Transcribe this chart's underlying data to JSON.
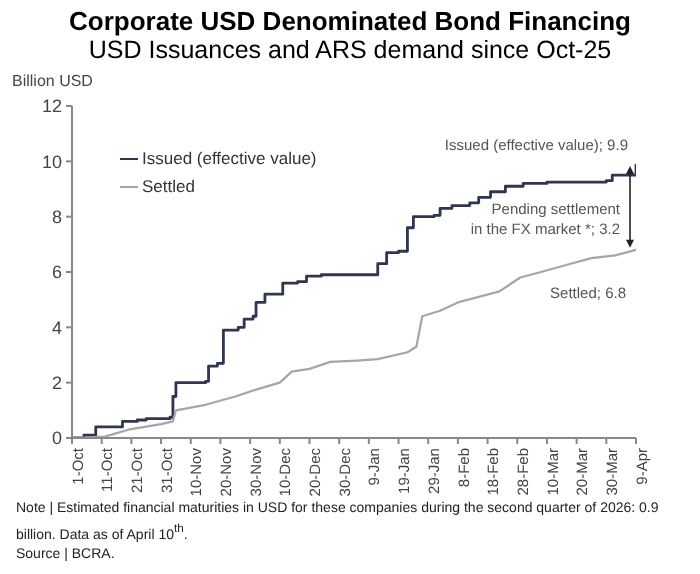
{
  "chart_data": {
    "type": "line",
    "title": "Corporate USD Denominated Bond Financing",
    "subtitle": "USD Issuances and ARS demand since Oct-25",
    "ylabel": "Billion USD",
    "series": [
      {
        "name": "Issued (effective value)",
        "type": "step",
        "color": "#2f3650",
        "x": [
          "2025-10-01",
          "2025-10-05",
          "2025-10-09",
          "2025-10-16",
          "2025-10-18",
          "2025-10-23",
          "2025-10-26",
          "2025-11-03",
          "2025-11-04",
          "2025-11-05",
          "2025-11-15",
          "2025-11-16",
          "2025-11-19",
          "2025-11-21",
          "2025-11-26",
          "2025-11-28",
          "2025-12-01",
          "2025-12-02",
          "2025-12-05",
          "2025-12-11",
          "2025-12-16",
          "2025-12-19",
          "2025-12-24",
          "2026-01-09",
          "2026-01-12",
          "2026-01-15",
          "2026-01-19",
          "2026-01-22",
          "2026-01-24",
          "2026-01-31",
          "2026-02-02",
          "2026-02-06",
          "2026-02-12",
          "2026-02-15",
          "2026-02-19",
          "2026-02-24",
          "2026-03-02",
          "2026-03-10",
          "2026-03-30",
          "2026-04-01",
          "2026-04-08",
          "2026-04-09"
        ],
        "values": [
          0,
          0.1,
          0.4,
          0.4,
          0.6,
          0.65,
          0.7,
          0.75,
          1.5,
          2.0,
          2.05,
          2.6,
          2.7,
          3.9,
          4.0,
          4.3,
          4.4,
          4.9,
          5.2,
          5.6,
          5.65,
          5.85,
          5.9,
          5.9,
          6.3,
          6.7,
          6.75,
          7.6,
          8.0,
          8.05,
          8.3,
          8.4,
          8.5,
          8.7,
          8.9,
          9.1,
          9.2,
          9.25,
          9.3,
          9.5,
          9.5,
          9.9
        ]
      },
      {
        "name": "Settled",
        "color": "#a6a6a6",
        "x": [
          "2025-10-01",
          "2025-10-12",
          "2025-10-20",
          "2025-10-31",
          "2025-11-04",
          "2025-11-05",
          "2025-11-15",
          "2025-11-25",
          "2025-12-02",
          "2025-12-10",
          "2025-12-14",
          "2025-12-20",
          "2025-12-27",
          "2026-01-05",
          "2026-01-12",
          "2026-01-22",
          "2026-01-25",
          "2026-01-27",
          "2026-02-02",
          "2026-02-08",
          "2026-02-15",
          "2026-02-22",
          "2026-03-01",
          "2026-03-08",
          "2026-03-18",
          "2026-03-25",
          "2026-04-02",
          "2026-04-09"
        ],
        "values": [
          0,
          0.05,
          0.3,
          0.5,
          0.6,
          1.0,
          1.2,
          1.5,
          1.75,
          2.0,
          2.4,
          2.5,
          2.75,
          2.8,
          2.85,
          3.1,
          3.3,
          4.4,
          4.6,
          4.9,
          5.1,
          5.3,
          5.8,
          6.0,
          6.3,
          6.5,
          6.6,
          6.8
        ]
      }
    ],
    "xlim": [
      "2025-10-01",
      "2026-04-09"
    ],
    "xticks": [
      {
        "value": "2025-10-01",
        "label": "1-Oct"
      },
      {
        "value": "2025-10-11",
        "label": "11-Oct"
      },
      {
        "value": "2025-10-21",
        "label": "21-Oct"
      },
      {
        "value": "2025-10-31",
        "label": "31-Oct"
      },
      {
        "value": "2025-11-10",
        "label": "10-Nov"
      },
      {
        "value": "2025-11-20",
        "label": "20-Nov"
      },
      {
        "value": "2025-11-30",
        "label": "30-Nov"
      },
      {
        "value": "2025-12-10",
        "label": "10-Dec"
      },
      {
        "value": "2025-12-20",
        "label": "20-Dec"
      },
      {
        "value": "2025-12-30",
        "label": "30-Dec"
      },
      {
        "value": "2026-01-09",
        "label": "9-Jan"
      },
      {
        "value": "2026-01-19",
        "label": "19-Jan"
      },
      {
        "value": "2026-01-29",
        "label": "29-Jan"
      },
      {
        "value": "2026-02-08",
        "label": "8-Feb"
      },
      {
        "value": "2026-02-18",
        "label": "18-Feb"
      },
      {
        "value": "2026-02-28",
        "label": "28-Feb"
      },
      {
        "value": "2026-03-10",
        "label": "10-Mar"
      },
      {
        "value": "2026-03-20",
        "label": "20-Mar"
      },
      {
        "value": "2026-03-30",
        "label": "30-Mar"
      },
      {
        "value": "2026-04-09",
        "label": "9-Apr"
      }
    ],
    "ylim": [
      0,
      12
    ],
    "yticks": [
      0,
      2,
      4,
      6,
      8,
      10,
      12
    ],
    "grid": false,
    "legend": "top left",
    "marker": "none",
    "annotations": [
      {
        "text": "Issued (effective value); 9.9",
        "x": "2026-04-09",
        "y": 9.9
      },
      {
        "text": "Pending settlement\nin the FX market *; 3.2",
        "x": "2026-04-09",
        "y": 6.8
      },
      {
        "text": "Settled; 6.8",
        "x": "2026-04-09",
        "y": 6.8
      },
      "Note | Estimated financial maturities in USD for these companies during the second quarter of 2026: 0.9 billion. Data as of April 10$^{th}$.",
      "Source | BCRA."
    ]
  }
}
